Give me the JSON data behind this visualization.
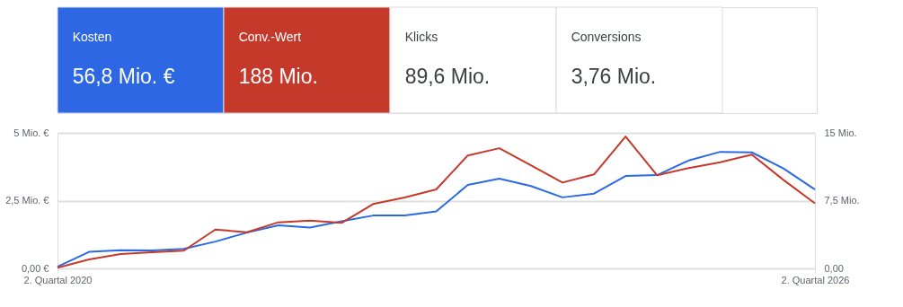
{
  "chart_data": [
    {
      "type": "other",
      "categories": [
        "Kosten",
        "Conv.-Wert",
        "Klicks",
        "Conversions"
      ],
      "value_labels": [
        "56,8 Mio. €",
        "188 Mio.",
        "89,6 Mio.",
        "3,76 Mio."
      ],
      "colors": [
        "#2d67e3",
        "#c5392a",
        null,
        null
      ]
    },
    {
      "type": "line",
      "categories": [
        "2. Quartal 2020",
        null,
        null,
        null,
        null,
        null,
        null,
        null,
        null,
        null,
        null,
        null,
        null,
        null,
        null,
        null,
        null,
        null,
        null,
        null,
        null,
        null,
        null,
        null,
        "2. Quartal 2026"
      ],
      "series": [
        {
          "color": "#2a6ae6",
          "values": [
            0.06,
            0.61,
            0.67,
            0.66,
            0.72,
            0.99,
            1.32,
            1.59,
            1.51,
            1.74,
            1.95,
            1.95,
            2.1,
            3.08,
            3.31,
            3.04,
            2.62,
            2.76,
            3.41,
            3.44,
            3.98,
            4.3,
            4.28,
            3.69,
            2.91
          ]
        },
        {
          "color": "#c5392a",
          "axis": "y2",
          "values": [
            0.07,
            1.0,
            1.59,
            1.79,
            1.96,
            4.3,
            4.0,
            5.1,
            5.3,
            5.03,
            7.12,
            7.85,
            8.74,
            12.5,
            13.3,
            11.4,
            9.5,
            10.4,
            14.6,
            10.3,
            11.1,
            11.75,
            12.6,
            9.8,
            7.2
          ]
        }
      ],
      "ylim": [
        0,
        5
      ],
      "yticks": [
        {
          "value": 0,
          "label": "0,00 €"
        },
        {
          "value": 2.5,
          "label": "2,5 Mio. €"
        },
        {
          "value": 5,
          "label": "5 Mio. €"
        }
      ],
      "y2lim": [
        0,
        15
      ],
      "y2ticks": [
        {
          "value": 0,
          "label": "0,00"
        },
        {
          "value": 7.5,
          "label": "7,5 Mio."
        },
        {
          "value": 15,
          "label": "15 Mio."
        }
      ],
      "grid": true
    }
  ]
}
